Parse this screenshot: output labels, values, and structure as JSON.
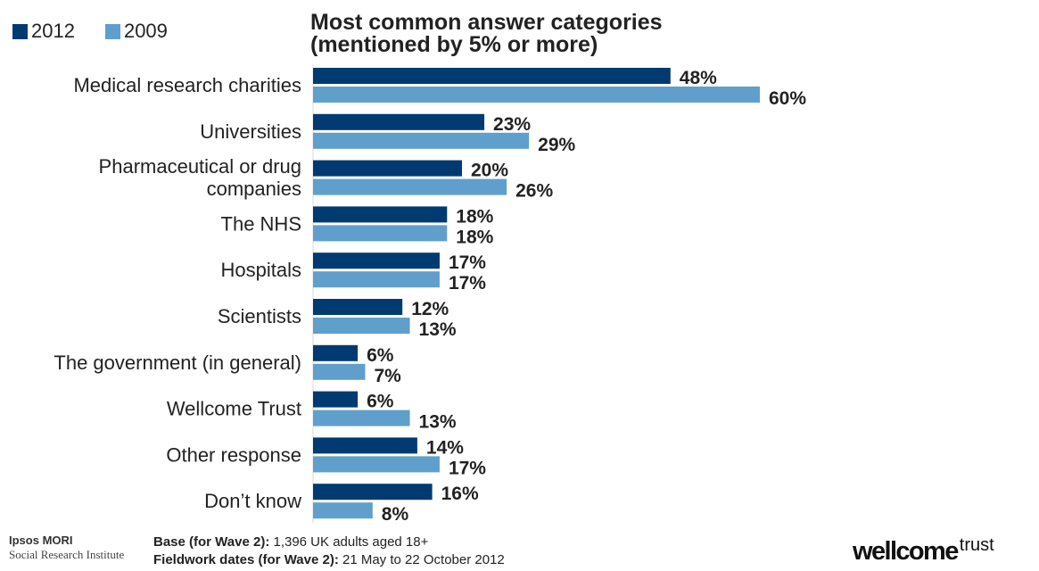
{
  "colors": {
    "series_2012": "#003a70",
    "series_2009": "#609fcc",
    "text": "#222222"
  },
  "legend": [
    {
      "label": "2012",
      "color": "#003a70"
    },
    {
      "label": "2009",
      "color": "#609fcc"
    }
  ],
  "title_lines": [
    "Most common answer categories",
    "(mentioned by 5% or more)"
  ],
  "chart_data": {
    "type": "bar",
    "orientation": "horizontal",
    "title": "Most common answer categories (mentioned by 5% or more)",
    "categories": [
      [
        "Medical research charities"
      ],
      [
        "Universities"
      ],
      [
        "Pharmaceutical or drug",
        "companies"
      ],
      [
        "The NHS"
      ],
      [
        "Hospitals"
      ],
      [
        "Scientists"
      ],
      [
        "The government (in general)"
      ],
      [
        "Wellcome Trust"
      ],
      [
        "Other response"
      ],
      [
        "Don’t know"
      ]
    ],
    "series": [
      {
        "name": "2012",
        "color": "#003a70",
        "values": [
          48,
          23,
          20,
          18,
          17,
          12,
          6,
          6,
          14,
          16
        ]
      },
      {
        "name": "2009",
        "color": "#609fcc",
        "values": [
          60,
          29,
          26,
          18,
          17,
          13,
          7,
          13,
          17,
          8
        ]
      }
    ],
    "value_suffix": "%",
    "xlim": [
      0,
      100
    ],
    "grid": false,
    "legend_position": "top-left"
  },
  "footer": {
    "org_name": "Ipsos MORI",
    "org_unit": "Social Research Institute",
    "base_label": "Base (for Wave 2):",
    "base_value": " 1,396 UK adults aged 18+",
    "fieldwork_label": "Fieldwork dates (for Wave 2):",
    "fieldwork_value": " 21 May to 22 October 2012",
    "brand_main": "wellcome",
    "brand_sup": "trust"
  }
}
